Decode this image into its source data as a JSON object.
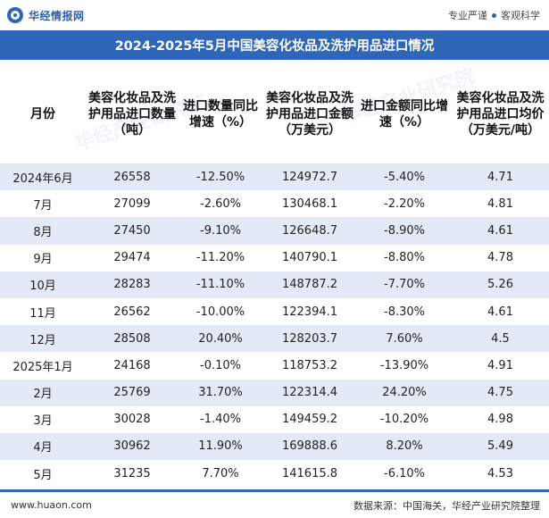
{
  "header": {
    "brand": "华经情报网",
    "tagline_left": "专业严谨",
    "tagline_right": "客观科学"
  },
  "title": "2024-2025年5月中国美容化妆品及洗护用品进口情况",
  "columns": [
    "月份",
    "美容化妆品及洗护用品进口数量（吨）",
    "进口数量同比增速（%）",
    "美容化妆品及洗护用品进口金额（万美元）",
    "进口金额同比增速（%）",
    "美容化妆品及洗护用品进口均价（万美元/吨）"
  ],
  "rows": [
    {
      "month": "2024年6月",
      "volume": "26558",
      "volume_yoy": "-12.50%",
      "amount": "124972.7",
      "amount_yoy": "-5.40%",
      "price": "4.71"
    },
    {
      "month": "7月",
      "volume": "27099",
      "volume_yoy": "-2.60%",
      "amount": "130468.1",
      "amount_yoy": "-2.20%",
      "price": "4.81"
    },
    {
      "month": "8月",
      "volume": "27450",
      "volume_yoy": "-9.10%",
      "amount": "126648.7",
      "amount_yoy": "-8.90%",
      "price": "4.61"
    },
    {
      "month": "9月",
      "volume": "29474",
      "volume_yoy": "-11.20%",
      "amount": "140790.1",
      "amount_yoy": "-8.80%",
      "price": "4.78"
    },
    {
      "month": "10月",
      "volume": "28283",
      "volume_yoy": "-11.10%",
      "amount": "148787.2",
      "amount_yoy": "-7.70%",
      "price": "5.26"
    },
    {
      "month": "11月",
      "volume": "26562",
      "volume_yoy": "-10.00%",
      "amount": "122394.1",
      "amount_yoy": "-8.30%",
      "price": "4.61"
    },
    {
      "month": "12月",
      "volume": "28508",
      "volume_yoy": "20.40%",
      "amount": "128203.7",
      "amount_yoy": "7.60%",
      "price": "4.5"
    },
    {
      "month": "2025年1月",
      "volume": "24168",
      "volume_yoy": "-0.10%",
      "amount": "118753.2",
      "amount_yoy": "-13.90%",
      "price": "4.91"
    },
    {
      "month": "2月",
      "volume": "25769",
      "volume_yoy": "31.70%",
      "amount": "122314.4",
      "amount_yoy": "24.20%",
      "price": "4.75"
    },
    {
      "month": "3月",
      "volume": "30028",
      "volume_yoy": "-1.40%",
      "amount": "149459.2",
      "amount_yoy": "-10.20%",
      "price": "4.98"
    },
    {
      "month": "4月",
      "volume": "30962",
      "volume_yoy": "11.90%",
      "amount": "169888.6",
      "amount_yoy": "8.20%",
      "price": "5.49"
    },
    {
      "month": "5月",
      "volume": "31235",
      "volume_yoy": "7.70%",
      "amount": "141615.8",
      "amount_yoy": "-6.10%",
      "price": "4.53"
    }
  ],
  "footer": {
    "website": "www.huaon.com",
    "source": "数据来源：中国海关，华经产业研究院整理"
  },
  "watermark": "华经产业研究院",
  "colors": {
    "brand_blue": "#2f66b7",
    "row_stripe": "#e3eaf6",
    "negative_text": "#5b78b8"
  }
}
